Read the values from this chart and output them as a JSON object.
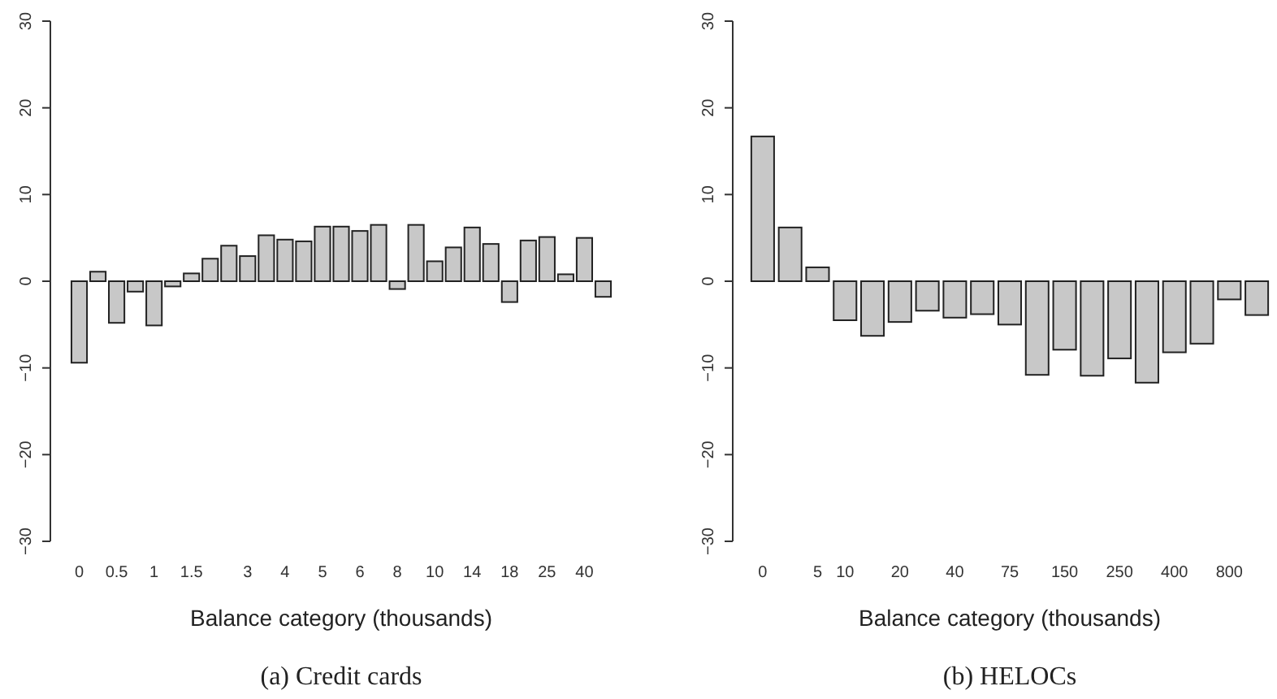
{
  "chart_data": [
    {
      "type": "bar",
      "title": "(a) Credit cards",
      "xlabel": "Balance category (thousands)",
      "categories": [
        "0",
        null,
        "0.5",
        null,
        "1",
        null,
        "1.5",
        null,
        null,
        "3",
        null,
        "4",
        null,
        "5",
        null,
        "6",
        null,
        "8",
        null,
        "10",
        null,
        "14",
        null,
        "18",
        null,
        "25",
        null,
        "40",
        null
      ],
      "values": [
        -9.4,
        1.1,
        -4.8,
        -1.2,
        -5.1,
        -0.6,
        0.9,
        2.6,
        4.1,
        2.9,
        5.3,
        4.8,
        4.6,
        6.3,
        6.3,
        5.8,
        6.5,
        -0.9,
        6.5,
        2.3,
        3.9,
        6.2,
        4.3,
        -2.4,
        4.7,
        5.1,
        0.8,
        5.0,
        -1.8
      ],
      "color": "#c8c8c8",
      "ylim": [
        -30,
        30
      ],
      "yticks": [
        -30,
        -20,
        -10,
        0,
        10,
        20,
        30
      ]
    },
    {
      "type": "bar",
      "title": "(b) HELOCs",
      "xlabel": "Balance category (thousands)",
      "categories": [
        "0",
        null,
        "5",
        "10",
        null,
        "20",
        null,
        "40",
        null,
        "75",
        null,
        "150",
        null,
        "250",
        null,
        "400",
        null,
        "800",
        null
      ],
      "values": [
        16.7,
        6.2,
        1.6,
        -4.5,
        -6.3,
        -4.7,
        -3.4,
        -4.2,
        -3.8,
        -5.0,
        -10.8,
        -7.9,
        -10.9,
        -8.9,
        -11.7,
        -8.2,
        -7.2,
        -2.1,
        -3.9
      ],
      "color": "#c8c8c8",
      "ylim": [
        -30,
        30
      ],
      "yticks": [
        -30,
        -20,
        -10,
        0,
        10,
        20,
        30
      ]
    }
  ]
}
